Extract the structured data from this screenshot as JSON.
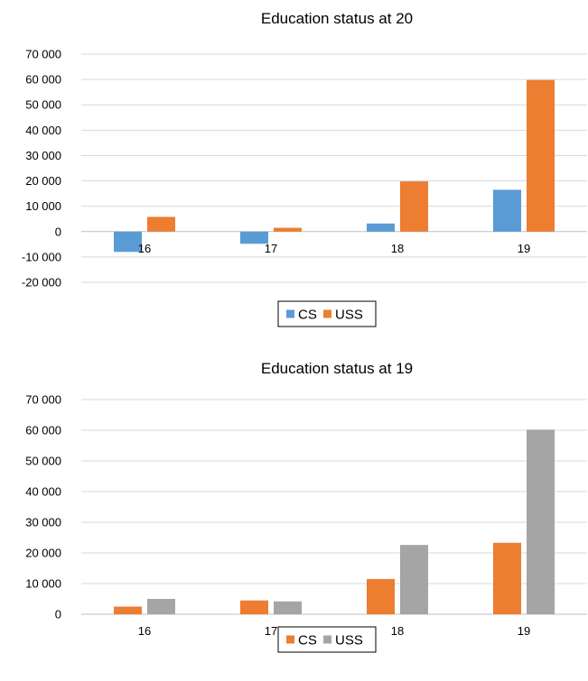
{
  "chart_data": [
    {
      "type": "bar",
      "title": "Education status at 20",
      "xlabel": "",
      "ylabel": "",
      "categories": [
        "16",
        "17",
        "18",
        "19"
      ],
      "series": [
        {
          "name": "CS",
          "color": "#5B9BD5",
          "values": [
            -8000,
            -4800,
            3200,
            16500
          ]
        },
        {
          "name": "USS",
          "color": "#ED7D31",
          "values": [
            5800,
            1500,
            19800,
            59800
          ]
        }
      ],
      "ylim": [
        -20000,
        70000
      ],
      "yticks": [
        -20000,
        -10000,
        0,
        10000,
        20000,
        30000,
        40000,
        50000,
        60000,
        70000
      ],
      "ytick_labels": [
        "-20 000",
        "-10 000",
        "0",
        "10 000",
        "20 000",
        "30 000",
        "40 000",
        "50 000",
        "60 000",
        "70 000"
      ],
      "grid": true,
      "legend": "bottom"
    },
    {
      "type": "bar",
      "title": "Education status at 19",
      "xlabel": "",
      "ylabel": "",
      "categories": [
        "16",
        "17",
        "18",
        "19"
      ],
      "series": [
        {
          "name": "CS",
          "color": "#ED7D31",
          "values": [
            2500,
            4500,
            11500,
            23300
          ]
        },
        {
          "name": "USS",
          "color": "#A5A5A5",
          "values": [
            5000,
            4200,
            22600,
            60200
          ]
        }
      ],
      "ylim": [
        0,
        70000
      ],
      "yticks": [
        0,
        10000,
        20000,
        30000,
        40000,
        50000,
        60000,
        70000
      ],
      "ytick_labels": [
        "0",
        "10 000",
        "20 000",
        "30 000",
        "40 000",
        "50 000",
        "60 000",
        "70 000"
      ],
      "grid": true,
      "legend": "bottom"
    }
  ]
}
